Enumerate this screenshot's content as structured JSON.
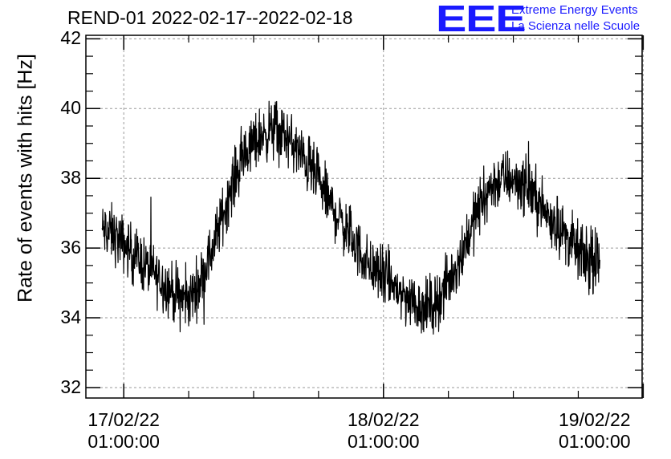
{
  "chart_data": {
    "type": "line",
    "title": "REND-01 2022-02-17--2022-02-18",
    "xlabel": "",
    "ylabel": "Rate of events with hits [Hz]",
    "ylim": [
      31.7,
      42.1
    ],
    "xlim_hours": [
      -3.5,
      47.9
    ],
    "grid": true,
    "line_color": "#000000",
    "yticks": [
      32,
      34,
      36,
      38,
      40,
      42
    ],
    "yticklabels": [
      "32",
      "34",
      "36",
      "38",
      "40",
      "42"
    ],
    "xticks_hours": [
      0,
      24,
      48
    ],
    "xticklabels": [
      {
        "date": "17/02/22",
        "time": "01:00:00"
      },
      {
        "date": "18/02/22",
        "time": "01:00:00"
      },
      {
        "date": "19/02/22",
        "time": "01:00:00"
      }
    ],
    "series": [
      {
        "x_hours": [
          -2,
          -1,
          0,
          1,
          2,
          3,
          4,
          5,
          6,
          7,
          8,
          9,
          10,
          11,
          12,
          13,
          14,
          15,
          16,
          17,
          18,
          19,
          20,
          21,
          22,
          23,
          24,
          25,
          26,
          27,
          28,
          29,
          30,
          31,
          32,
          33,
          34,
          35,
          36,
          37,
          38,
          39,
          40,
          41,
          42,
          43,
          44
        ],
        "mean": [
          36.5,
          36.4,
          36.1,
          35.8,
          35.5,
          35.2,
          34.9,
          34.6,
          34.5,
          35.0,
          35.8,
          36.8,
          37.8,
          38.6,
          39.0,
          39.3,
          39.4,
          39.2,
          38.8,
          38.4,
          37.9,
          37.3,
          36.8,
          36.3,
          35.8,
          35.4,
          35.2,
          34.9,
          34.6,
          34.4,
          34.3,
          34.5,
          35.0,
          35.7,
          36.5,
          37.3,
          37.8,
          38.0,
          38.0,
          37.8,
          37.5,
          37.0,
          36.7,
          36.3,
          35.9,
          35.6,
          35.5
        ],
        "noise_amplitude": 1.2
      }
    ]
  },
  "logo": {
    "mark": "EEE",
    "line1": "Extreme Energy Events",
    "line2": "La Scienza nelle Scuole",
    "color": "#1a1aff"
  }
}
